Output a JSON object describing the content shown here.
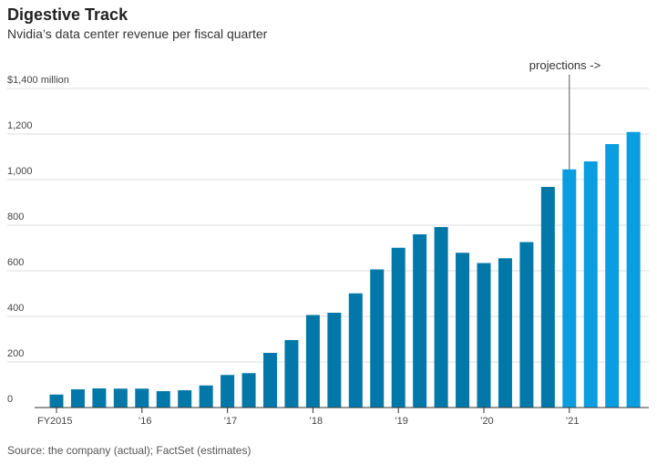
{
  "header": {
    "title": "Digestive Track",
    "subtitle": "Nvidia’s data center revenue per fiscal quarter"
  },
  "footer": {
    "source": "Source: the company (actual); FactSet (estimates)"
  },
  "chart_data": {
    "type": "bar",
    "ylim": [
      0,
      1400
    ],
    "y_ticks": [
      {
        "value": 0,
        "label": "0"
      },
      {
        "value": 200,
        "label": "200"
      },
      {
        "value": 400,
        "label": "400"
      },
      {
        "value": 600,
        "label": "600"
      },
      {
        "value": 800,
        "label": "800"
      },
      {
        "value": 1000,
        "label": "1,000"
      },
      {
        "value": 1200,
        "label": "1,200"
      },
      {
        "value": 1400,
        "label": "$1,400 million"
      }
    ],
    "x_ticks": [
      {
        "index": 0,
        "label": "FY2015"
      },
      {
        "index": 4,
        "label": "’16"
      },
      {
        "index": 8,
        "label": "’17"
      },
      {
        "index": 12,
        "label": "’18"
      },
      {
        "index": 16,
        "label": "’19"
      },
      {
        "index": 20,
        "label": "’20"
      },
      {
        "index": 24,
        "label": "’21"
      }
    ],
    "values": [
      57,
      80,
      84,
      83,
      83,
      72,
      76,
      97,
      143,
      151,
      240,
      296,
      406,
      416,
      501,
      606,
      701,
      760,
      792,
      679,
      634,
      655,
      726,
      968,
      1045,
      1080,
      1156,
      1209
    ],
    "projection_start_index": 24,
    "colors": {
      "actual": "#0178a8",
      "projection": "#0a9ee0",
      "grid": "#dddddd",
      "axis": "#333333"
    },
    "annotation": {
      "text": "projections ->",
      "bar_index": 24
    },
    "grid": true
  }
}
